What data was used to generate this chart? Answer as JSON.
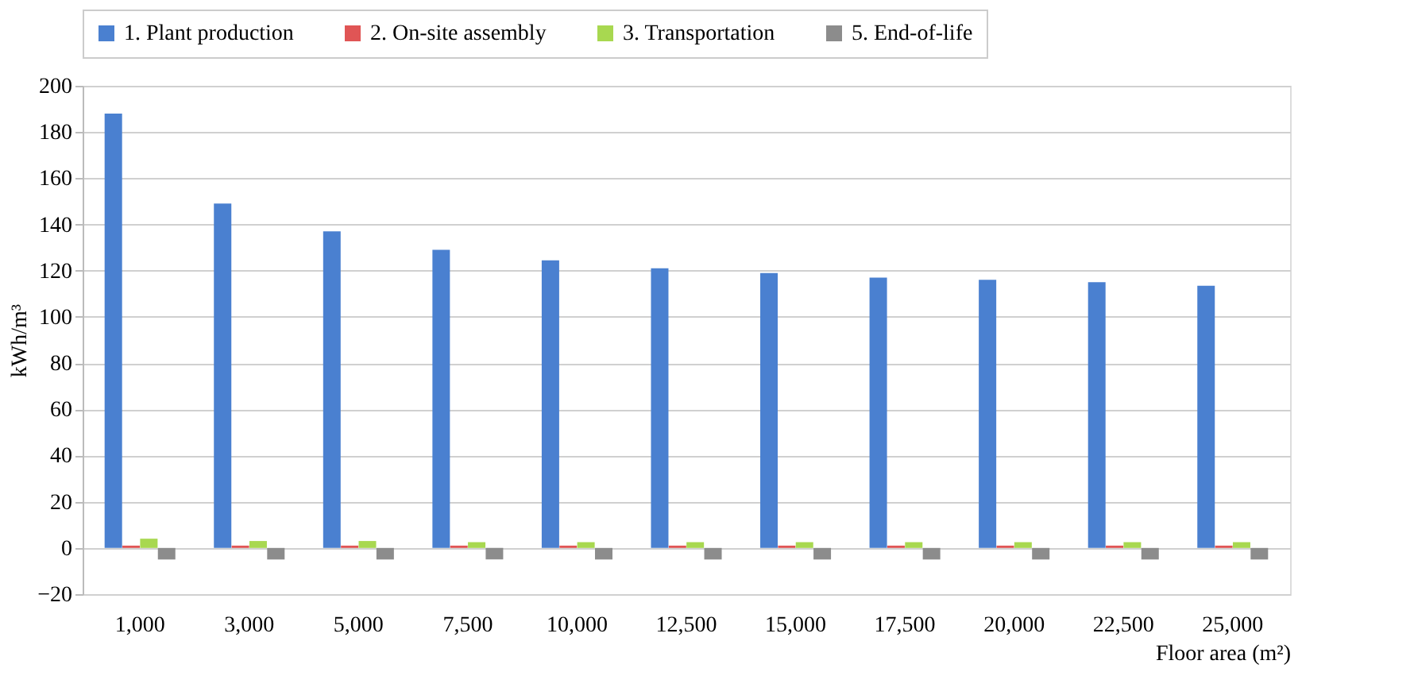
{
  "chart_data": {
    "type": "bar",
    "xlabel": "Floor area (m²)",
    "ylabel": "kWh/m³",
    "categories": [
      "1,000",
      "3,000",
      "5,000",
      "7,500",
      "10,000",
      "12,500",
      "15,000",
      "17,500",
      "20,000",
      "22,500",
      "25,000"
    ],
    "series": [
      {
        "name": "1. Plant production",
        "color": "#4a80d0",
        "values": [
          188,
          149,
          137,
          129,
          124.5,
          121,
          119,
          117,
          116,
          115,
          113.5
        ]
      },
      {
        "name": "2. On-site assembly",
        "color": "#e05555",
        "values": [
          1,
          1,
          1,
          1,
          1,
          1,
          1,
          1,
          1,
          1,
          1
        ]
      },
      {
        "name": "3. Transportation",
        "color": "#a8d850",
        "values": [
          4,
          3,
          3,
          2.5,
          2.5,
          2.5,
          2.5,
          2.5,
          2.5,
          2.5,
          2.5
        ]
      },
      {
        "name": "5. End-of-life",
        "color": "#8c8c8c",
        "values": [
          -5,
          -5,
          -5,
          -5,
          -5,
          -5,
          -5,
          -5,
          -5,
          -5,
          -5
        ]
      }
    ],
    "ylim": [
      -20,
      200
    ],
    "yticks": [
      -20,
      0,
      20,
      40,
      60,
      80,
      100,
      120,
      140,
      160,
      180,
      200
    ],
    "grid": "y",
    "legend": "top"
  }
}
